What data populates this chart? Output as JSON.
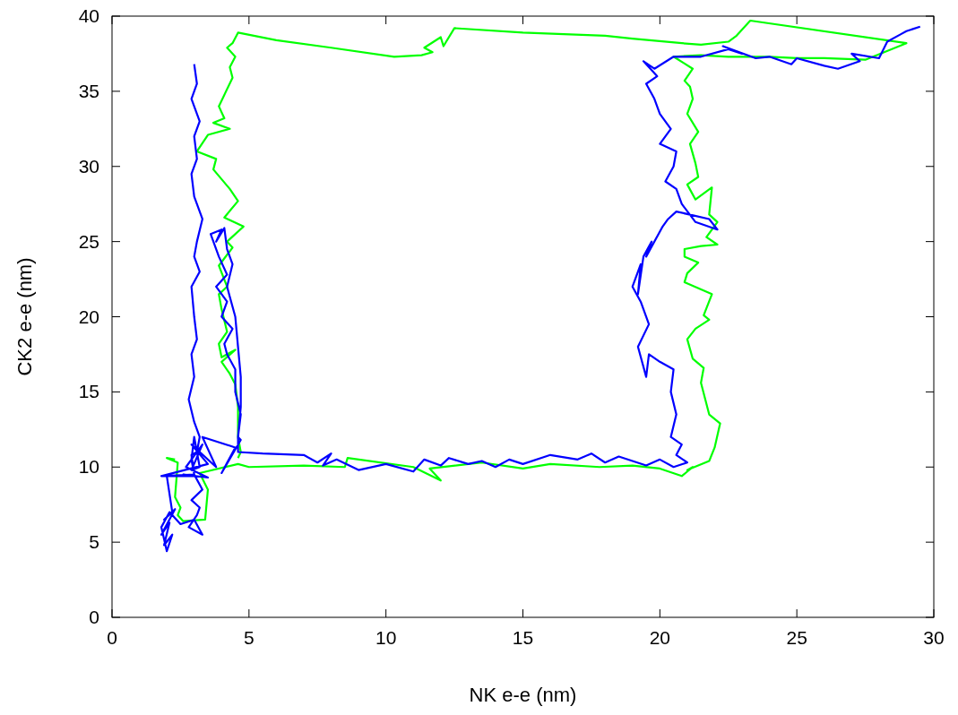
{
  "chart_data": {
    "type": "line",
    "xlabel": "NK e-e (nm)",
    "ylabel": "CK2 e-e (nm)",
    "xlim": [
      0,
      30
    ],
    "ylim": [
      0,
      40
    ],
    "xticks": [
      0,
      5,
      10,
      15,
      20,
      25,
      30
    ],
    "yticks": [
      0,
      5,
      10,
      15,
      20,
      25,
      30,
      35,
      40
    ],
    "grid": false,
    "marker": "none",
    "line_style": "solid",
    "series": [
      {
        "color": "#00ff00",
        "x": [
          2.3,
          2.0,
          2.4,
          2.3,
          2.5,
          2.4,
          2.6,
          3.4,
          3.5,
          3.2,
          4.6,
          5.0,
          7.0,
          8.5,
          8.6,
          11.0,
          12.0,
          11.6,
          13.5,
          15.0,
          16.0,
          17.8,
          19.0,
          20.0,
          20.8,
          21.2,
          21.0,
          21.8,
          22.0,
          22.2,
          21.8,
          21.5,
          21.6,
          21.2,
          21.0,
          21.3,
          21.8,
          21.6,
          21.9,
          20.9,
          21.0,
          21.4,
          20.9,
          20.9,
          21.5,
          22.1,
          21.7,
          22.1,
          21.8,
          21.9,
          21.3,
          21.0,
          21.4,
          21.3,
          21.1,
          21.4,
          21.0,
          21.2,
          21.1,
          20.9,
          21.2,
          20.5,
          21.5,
          22.5,
          24.0,
          25.0,
          26.0,
          27.5,
          29.0,
          23.3,
          22.8,
          22.5,
          21.5,
          20.8,
          19.0,
          18.0,
          15.0,
          12.5,
          12.1,
          12.0,
          11.4,
          11.7,
          11.3,
          10.3,
          8.0,
          6.0,
          4.6,
          4.4,
          4.2,
          4.5,
          4.3,
          4.4,
          3.9,
          4.1,
          3.7,
          4.3,
          3.5,
          3.1,
          3.8,
          3.7,
          4.3,
          4.6,
          4.1,
          4.8,
          4.2,
          4.4,
          3.9,
          4.2,
          3.9,
          4.0,
          4.2,
          3.9,
          4.0,
          4.5,
          4.0,
          4.3,
          4.5,
          4.6,
          4.6,
          4.7,
          4.6
        ],
        "values": [
          10.5,
          10.6,
          10.3,
          8.0,
          7.3,
          6.8,
          6.4,
          6.5,
          8.5,
          9.6,
          10.2,
          10.0,
          10.1,
          10.0,
          10.6,
          10.0,
          9.1,
          9.9,
          10.3,
          9.9,
          10.2,
          10.0,
          10.1,
          9.9,
          9.4,
          10.0,
          9.8,
          10.4,
          11.3,
          12.9,
          13.5,
          15.6,
          16.6,
          17.2,
          18.5,
          19.2,
          19.8,
          20.1,
          21.5,
          22.3,
          22.9,
          23.6,
          24.0,
          24.5,
          24.7,
          24.8,
          25.3,
          26.3,
          26.8,
          28.6,
          27.8,
          28.8,
          29.3,
          30.2,
          31.5,
          32.3,
          33.5,
          34.5,
          35.3,
          35.7,
          36.5,
          37.3,
          37.4,
          37.3,
          37.3,
          37.2,
          37.2,
          37.1,
          38.2,
          39.7,
          38.7,
          38.3,
          38.1,
          38.2,
          38.5,
          38.7,
          38.9,
          39.2,
          38.0,
          38.6,
          37.9,
          37.6,
          37.4,
          37.3,
          37.9,
          38.4,
          38.9,
          38.2,
          37.9,
          37.3,
          36.6,
          35.9,
          34.0,
          33.2,
          32.9,
          32.5,
          32.1,
          31.0,
          30.5,
          29.8,
          28.5,
          27.7,
          26.6,
          26.0,
          25.0,
          24.6,
          23.4,
          22.0,
          21.5,
          20.5,
          19.0,
          18.2,
          17.3,
          17.8,
          17.0,
          16.2,
          15.5,
          14.0,
          12.0,
          11.0,
          10.6
        ]
      },
      {
        "color": "#0000ff",
        "x": [
          3.0,
          3.1,
          2.9,
          3.2,
          3.0,
          3.1,
          2.9,
          3.0,
          3.3,
          3.1,
          3.0,
          3.2,
          2.9,
          3.0,
          3.1,
          2.9,
          3.0,
          2.8,
          3.0,
          3.2,
          3.1,
          2.9,
          3.0,
          2.9,
          3.0,
          3.2,
          2.9,
          3.3,
          2.7,
          3.5,
          2.6,
          3.0,
          2.0,
          2.2,
          1.9,
          2.3,
          1.8,
          2.1,
          1.9,
          2.2,
          2.0,
          1.8,
          2.1,
          2.5,
          3.0,
          3.3,
          2.8,
          3.1,
          3.2,
          2.9,
          3.3,
          3.0,
          1.8,
          3.5,
          2.9,
          3.8,
          3.3,
          4.5,
          4.0,
          4.7,
          4.6,
          4.7,
          4.5,
          4.5,
          4.2,
          4.1,
          4.4,
          4.0,
          4.2,
          3.8,
          4.2,
          3.9,
          3.6,
          4.0,
          3.8,
          4.1,
          4.2,
          4.4,
          4.2,
          4.5,
          4.6,
          4.7,
          4.7,
          4.6,
          4.6,
          5.5,
          7.0,
          7.5,
          8.0,
          7.7,
          8.2,
          9.0,
          10.0,
          11.0,
          11.4,
          12.0,
          12.3,
          13.0,
          13.5,
          14.0,
          14.5,
          15.0,
          16.0,
          17.0,
          17.5,
          18.0,
          18.5,
          19.0,
          19.5,
          20.0,
          20.5,
          21.0,
          20.6,
          20.8,
          20.4,
          20.6,
          20.4,
          20.5,
          20.0,
          19.6,
          19.5,
          19.2,
          19.6,
          19.3,
          19.0,
          19.3,
          19.2,
          19.4,
          19.7,
          19.5,
          20.1,
          20.3,
          20.6,
          21.8,
          22.1,
          21.3,
          20.8,
          20.6,
          20.2,
          20.5,
          20.6,
          20.0,
          20.4,
          20.0,
          19.8,
          19.5,
          19.9,
          19.4,
          19.8,
          20.5,
          21.5,
          22.5,
          23.0,
          22.3,
          23.5,
          24.0,
          24.8,
          25.0,
          26.0,
          26.5,
          27.3,
          27.0,
          28.0,
          28.3,
          28.8,
          29.0,
          29.5
        ],
        "values": [
          36.8,
          35.5,
          34.5,
          33.0,
          32.0,
          30.5,
          29.5,
          28.0,
          26.5,
          25.0,
          24.0,
          23.0,
          22.0,
          20.0,
          18.5,
          17.5,
          16.0,
          14.5,
          13.0,
          12.0,
          11.0,
          10.8,
          9.5,
          10.5,
          12.0,
          10.0,
          9.8,
          11.5,
          10.0,
          9.3,
          9.5,
          9.4,
          9.4,
          7.0,
          6.5,
          7.2,
          5.5,
          6.3,
          4.8,
          5.5,
          4.4,
          6.0,
          7.0,
          6.2,
          6.5,
          5.5,
          6.0,
          6.8,
          7.3,
          7.8,
          8.5,
          9.5,
          9.4,
          10.2,
          11.5,
          10.0,
          12.0,
          11.3,
          9.6,
          11.8,
          12.0,
          13.5,
          15.0,
          16.5,
          17.5,
          18.2,
          19.2,
          20.0,
          21.0,
          22.0,
          22.8,
          24.0,
          25.5,
          25.8,
          25.0,
          25.9,
          24.5,
          23.5,
          22.0,
          20.0,
          18.0,
          16.0,
          14.0,
          12.0,
          11.0,
          10.9,
          10.8,
          10.3,
          10.9,
          10.1,
          10.5,
          9.8,
          10.2,
          9.7,
          10.5,
          10.1,
          10.6,
          10.2,
          10.4,
          10.0,
          10.5,
          10.2,
          10.8,
          10.5,
          10.9,
          10.3,
          10.7,
          10.4,
          10.1,
          10.5,
          10.0,
          10.3,
          10.8,
          11.5,
          12.0,
          13.5,
          15.0,
          16.5,
          17.0,
          17.5,
          16.0,
          18.0,
          19.5,
          21.0,
          22.0,
          23.5,
          21.5,
          24.0,
          25.0,
          24.0,
          26.0,
          26.5,
          27.0,
          26.5,
          25.8,
          26.3,
          27.5,
          28.5,
          29.0,
          30.0,
          31.0,
          31.5,
          32.5,
          33.5,
          34.5,
          35.5,
          36.0,
          37.0,
          36.5,
          37.3,
          37.3,
          37.8,
          37.5,
          38.0,
          37.2,
          37.3,
          36.8,
          37.2,
          36.7,
          36.5,
          37.0,
          37.5,
          37.2,
          38.3,
          38.8,
          39.0,
          39.3
        ]
      }
    ]
  }
}
